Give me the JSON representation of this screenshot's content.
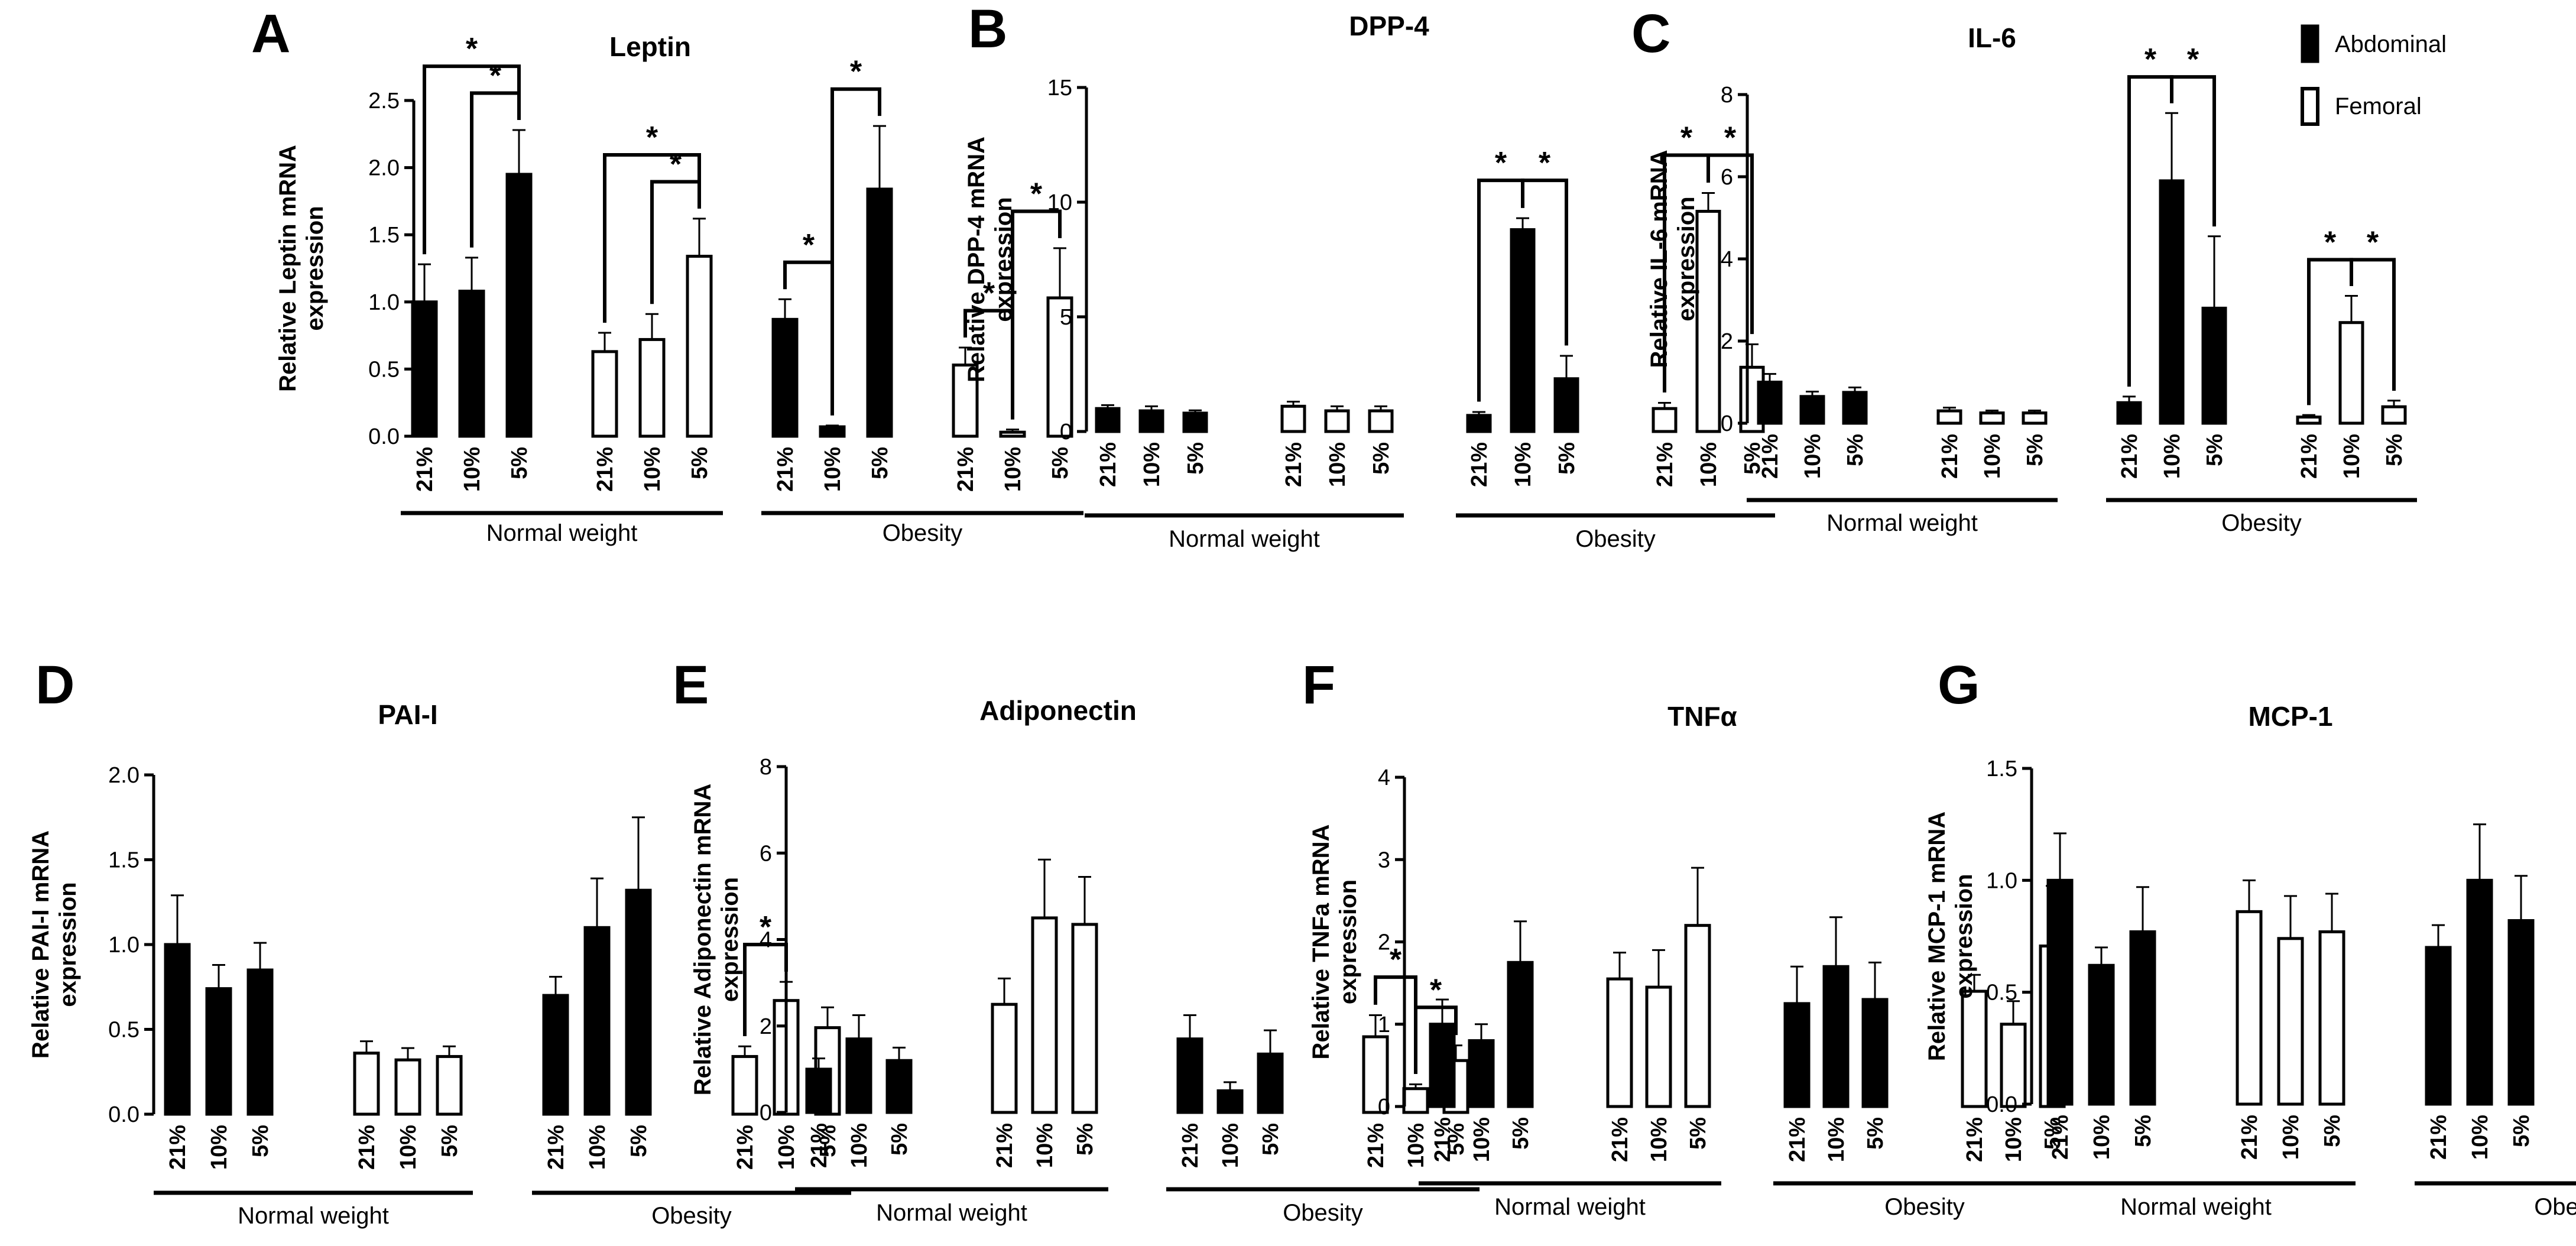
{
  "figure_title": "Relative mRNA expression in abdominal and femoral adipose tissue under 21%, 10% and 5% oxygen",
  "legend": {
    "items": [
      {
        "label": "Abdominal",
        "fill": "black"
      },
      {
        "label": "Femoral",
        "fill": "white"
      }
    ]
  },
  "colors": {
    "abdominal": "#000000",
    "femoral": "#ffffff",
    "axis": "#000000"
  },
  "chart_data": [
    {
      "panel": "A",
      "type": "bar",
      "title": "Leptin",
      "ylabel": "Relative Leptin mRNA expression",
      "ylim": [
        0,
        2.5
      ],
      "yticks": [
        "0.0",
        "0.5",
        "1.0",
        "1.5",
        "2.0",
        "2.5"
      ],
      "categories": [
        "21%",
        "10%",
        "5%",
        "21%",
        "10%",
        "5%",
        "21%",
        "10%",
        "5%",
        "21%",
        "10%",
        "5%"
      ],
      "tissue": [
        "Abdominal",
        "Abdominal",
        "Abdominal",
        "Femoral",
        "Femoral",
        "Femoral",
        "Abdominal",
        "Abdominal",
        "Abdominal",
        "Femoral",
        "Femoral",
        "Femoral"
      ],
      "values": [
        1.0,
        1.08,
        1.95,
        0.63,
        0.72,
        1.34,
        0.87,
        0.07,
        1.84,
        0.53,
        0.03,
        1.03
      ],
      "errors": [
        0.28,
        0.25,
        0.33,
        0.14,
        0.19,
        0.28,
        0.15,
        0.01,
        0.47,
        0.13,
        0.02,
        0.37
      ],
      "groups": [
        {
          "label": "Normal weight"
        },
        {
          "label": "Obesity"
        }
      ],
      "significance": [
        {
          "from": 0,
          "to": 2,
          "level": 1,
          "label": "*"
        },
        {
          "from": 1,
          "to": 2,
          "level": 0,
          "label": "*"
        },
        {
          "from": 3,
          "to": 5,
          "level": 1,
          "label": "*"
        },
        {
          "from": 4,
          "to": 5,
          "level": 0,
          "label": "*"
        },
        {
          "from": 6,
          "to": 7,
          "level": 0,
          "label": "*"
        },
        {
          "from": 7,
          "to": 8,
          "level": 0,
          "label": "*"
        },
        {
          "from": 9,
          "to": 10,
          "level": 0,
          "label": "*"
        },
        {
          "from": 10,
          "to": 11,
          "level": 0,
          "label": "*"
        }
      ]
    },
    {
      "panel": "B",
      "type": "bar",
      "title": "DPP-4",
      "ylabel": "Relative DPP-4 mRNA expression",
      "ylim": [
        0,
        15
      ],
      "yticks": [
        "0",
        "5",
        "10",
        "15"
      ],
      "categories": [
        "21%",
        "10%",
        "5%",
        "21%",
        "10%",
        "5%",
        "21%",
        "10%",
        "5%",
        "21%",
        "10%",
        "5%"
      ],
      "tissue": [
        "Abdominal",
        "Abdominal",
        "Abdominal",
        "Femoral",
        "Femoral",
        "Femoral",
        "Abdominal",
        "Abdominal",
        "Abdominal",
        "Femoral",
        "Femoral",
        "Femoral"
      ],
      "values": [
        1.0,
        0.9,
        0.8,
        1.1,
        0.9,
        0.9,
        0.7,
        8.8,
        2.3,
        1.0,
        9.6,
        2.8
      ],
      "errors": [
        0.15,
        0.2,
        0.12,
        0.2,
        0.2,
        0.2,
        0.15,
        0.5,
        1.0,
        0.25,
        0.8,
        1.0
      ],
      "groups": [
        {
          "label": "Normal weight"
        },
        {
          "label": "Obesity"
        }
      ],
      "significance": [
        {
          "from": 6,
          "to": 7,
          "level": 0,
          "label": "*"
        },
        {
          "from": 7,
          "to": 8,
          "level": 0,
          "label": "*"
        },
        {
          "from": 9,
          "to": 10,
          "level": 0,
          "label": "*"
        },
        {
          "from": 10,
          "to": 11,
          "level": 0,
          "label": "*"
        }
      ]
    },
    {
      "panel": "C",
      "type": "bar",
      "title": "IL-6",
      "ylabel": "Relative IL-6 mRNA expression",
      "ylim": [
        0,
        8
      ],
      "yticks": [
        "0",
        "2",
        "4",
        "6",
        "8"
      ],
      "categories": [
        "21%",
        "10%",
        "5%",
        "21%",
        "10%",
        "5%",
        "21%",
        "10%",
        "5%",
        "21%",
        "10%",
        "5%"
      ],
      "tissue": [
        "Abdominal",
        "Abdominal",
        "Abdominal",
        "Femoral",
        "Femoral",
        "Femoral",
        "Abdominal",
        "Abdominal",
        "Abdominal",
        "Femoral",
        "Femoral",
        "Femoral"
      ],
      "values": [
        1.0,
        0.65,
        0.75,
        0.3,
        0.25,
        0.25,
        0.5,
        5.9,
        2.8,
        0.15,
        2.45,
        0.4
      ],
      "errors": [
        0.2,
        0.12,
        0.12,
        0.08,
        0.06,
        0.06,
        0.15,
        1.65,
        1.75,
        0.05,
        0.65,
        0.15
      ],
      "groups": [
        {
          "label": "Normal weight"
        },
        {
          "label": "Obesity"
        }
      ],
      "significance": [
        {
          "from": 6,
          "to": 7,
          "level": 0,
          "label": "*"
        },
        {
          "from": 7,
          "to": 8,
          "level": 0,
          "label": "*"
        },
        {
          "from": 9,
          "to": 10,
          "level": 0,
          "label": "*"
        },
        {
          "from": 10,
          "to": 11,
          "level": 0,
          "label": "*"
        }
      ]
    },
    {
      "panel": "D",
      "type": "bar",
      "title": "PAI-I",
      "ylabel": "Relative PAI-I mRNA expression",
      "ylim": [
        0,
        2.0
      ],
      "yticks": [
        "0.0",
        "0.5",
        "1.0",
        "1.5",
        "2.0"
      ],
      "categories": [
        "21%",
        "10%",
        "5%",
        "21%",
        "10%",
        "5%",
        "21%",
        "10%",
        "5%",
        "21%",
        "10%",
        "5%"
      ],
      "tissue": [
        "Abdominal",
        "Abdominal",
        "Abdominal",
        "Femoral",
        "Femoral",
        "Femoral",
        "Abdominal",
        "Abdominal",
        "Abdominal",
        "Femoral",
        "Femoral",
        "Femoral"
      ],
      "values": [
        1.0,
        0.74,
        0.85,
        0.36,
        0.32,
        0.34,
        0.7,
        1.1,
        1.32,
        0.34,
        0.67,
        0.51
      ],
      "errors": [
        0.29,
        0.14,
        0.16,
        0.07,
        0.07,
        0.06,
        0.11,
        0.29,
        0.43,
        0.06,
        0.11,
        0.12
      ],
      "groups": [
        {
          "label": "Normal weight"
        },
        {
          "label": "Obesity"
        }
      ],
      "significance": [
        {
          "from": 9,
          "to": 10,
          "level": 0,
          "label": "*"
        }
      ]
    },
    {
      "panel": "E",
      "type": "bar",
      "title": "Adiponectin",
      "ylabel": "Relative Adiponectin mRNA expression",
      "ylim": [
        0,
        8
      ],
      "yticks": [
        "0",
        "2",
        "4",
        "6",
        "8"
      ],
      "categories": [
        "21%",
        "10%",
        "5%",
        "21%",
        "10%",
        "5%",
        "21%",
        "10%",
        "5%",
        "21%",
        "10%",
        "5%"
      ],
      "tissue": [
        "Abdominal",
        "Abdominal",
        "Abdominal",
        "Femoral",
        "Femoral",
        "Femoral",
        "Abdominal",
        "Abdominal",
        "Abdominal",
        "Femoral",
        "Femoral",
        "Femoral"
      ],
      "values": [
        1.0,
        1.7,
        1.2,
        2.5,
        4.5,
        4.35,
        1.7,
        0.5,
        1.35,
        1.75,
        0.55,
        1.2
      ],
      "errors": [
        0.25,
        0.55,
        0.3,
        0.6,
        1.35,
        1.1,
        0.55,
        0.2,
        0.55,
        0.5,
        0.1,
        0.35
      ],
      "groups": [
        {
          "label": "Normal weight"
        },
        {
          "label": "Obesity"
        }
      ],
      "significance": [
        {
          "from": 9,
          "to": 10,
          "level": 0,
          "label": "*"
        },
        {
          "from": 10,
          "to": 11,
          "level": 0,
          "label": "*"
        }
      ]
    },
    {
      "panel": "F",
      "type": "bar",
      "title": "TNFα",
      "ylabel": "Relative TNFa mRNA expression",
      "ylim": [
        0,
        4
      ],
      "yticks": [
        "0",
        "1",
        "2",
        "3",
        "4"
      ],
      "categories": [
        "21%",
        "10%",
        "5%",
        "21%",
        "10%",
        "5%",
        "21%",
        "10%",
        "5%",
        "21%",
        "10%",
        "5%"
      ],
      "tissue": [
        "Abdominal",
        "Abdominal",
        "Abdominal",
        "Femoral",
        "Femoral",
        "Femoral",
        "Abdominal",
        "Abdominal",
        "Abdominal",
        "Femoral",
        "Femoral",
        "Femoral"
      ],
      "values": [
        1.0,
        0.8,
        1.75,
        1.55,
        1.45,
        2.2,
        1.25,
        1.7,
        1.3,
        1.4,
        1.0,
        1.95
      ],
      "errors": [
        0.3,
        0.2,
        0.5,
        0.32,
        0.45,
        0.7,
        0.45,
        0.6,
        0.45,
        0.2,
        0.28,
        0.73
      ],
      "groups": [
        {
          "label": "Normal weight"
        },
        {
          "label": "Obesity"
        }
      ],
      "significance": []
    },
    {
      "panel": "G",
      "type": "bar",
      "title": "MCP-1",
      "ylabel": "Relative MCP-1 mRNA expression",
      "ylim": [
        0,
        1.5
      ],
      "yticks": [
        "0.0",
        "0.5",
        "1.0",
        "1.5"
      ],
      "categories": [
        "21%",
        "10%",
        "5%",
        "21%",
        "10%",
        "5%",
        "21%",
        "10%",
        "5%",
        "21%",
        "10%",
        "5%"
      ],
      "tissue": [
        "Abdominal",
        "Abdominal",
        "Abdominal",
        "Femoral",
        "Femoral",
        "Femoral",
        "Abdominal",
        "Abdominal",
        "Abdominal",
        "Femoral",
        "Femoral",
        "Femoral"
      ],
      "values": [
        1.0,
        0.62,
        0.77,
        0.86,
        0.74,
        0.77,
        0.7,
        1.0,
        0.82,
        0.8,
        0.56,
        0.74
      ],
      "errors": [
        0.21,
        0.08,
        0.2,
        0.14,
        0.19,
        0.17,
        0.1,
        0.25,
        0.2,
        0.13,
        0.06,
        0.22
      ],
      "groups": [
        {
          "label": "Normal weight"
        },
        {
          "label": "Obesity"
        }
      ],
      "significance": []
    }
  ]
}
